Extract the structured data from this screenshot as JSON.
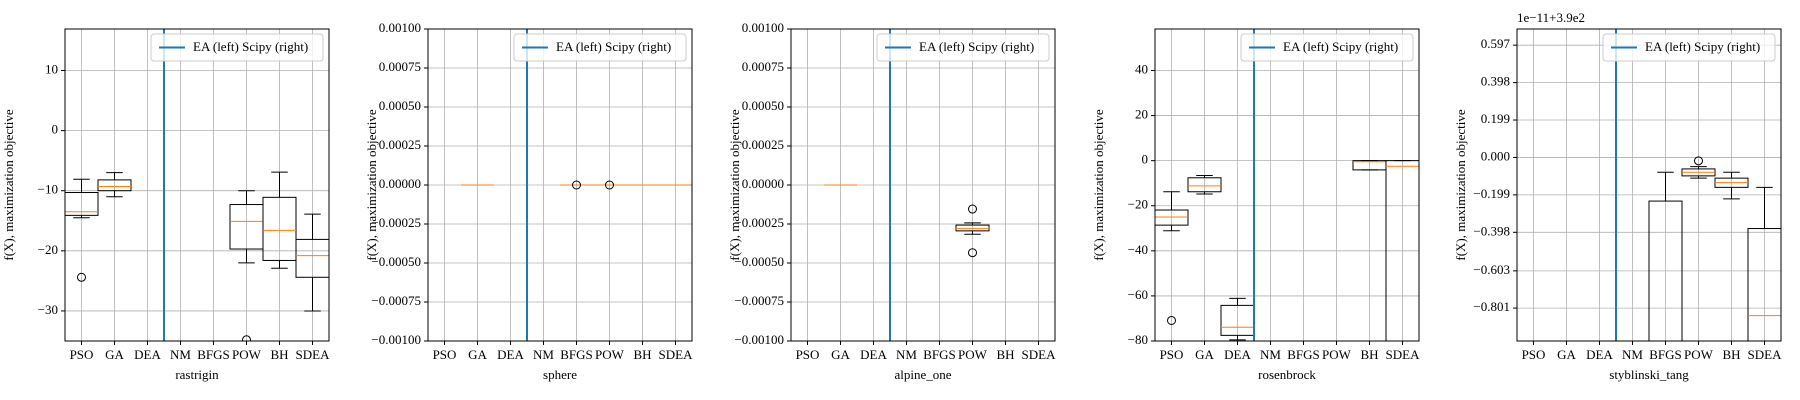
{
  "chart_data": [
    {
      "type": "box",
      "xlabel": "rastrigin",
      "ylabel": "f(X), maximization objective",
      "categories": [
        "PSO",
        "GA",
        "DEA",
        "NM",
        "BFGS",
        "POW",
        "BH",
        "SDEA"
      ],
      "positions": [
        1,
        2,
        3,
        4,
        5,
        6,
        7,
        8
      ],
      "xlim": [
        0.5,
        8.5
      ],
      "ylim": [
        -35,
        16.9
      ],
      "yticks": [
        {
          "value": -30,
          "label": "−30"
        },
        {
          "value": -20,
          "label": "−20"
        },
        {
          "value": -10,
          "label": "−10"
        },
        0,
        10
      ],
      "whisker_low": [
        -14.5,
        -11,
        null,
        null,
        null,
        -22,
        -22.9,
        -30
      ],
      "q1": [
        -14.1,
        -10,
        null,
        null,
        null,
        -19.7,
        -21.6,
        -24.4
      ],
      "median": [
        -13.5,
        -9.3,
        null,
        null,
        null,
        -15.1,
        -16.6,
        -20.8
      ],
      "q3": [
        -10.3,
        -8.2,
        null,
        null,
        null,
        -12.3,
        -11.1,
        -18.1
      ],
      "whisker_high": [
        -8.1,
        -7,
        null,
        null,
        null,
        -10,
        -6.9,
        -13.9
      ],
      "fliers": [
        [
          -24.4
        ],
        [],
        [],
        [],
        [],
        [
          -34.8
        ],
        [],
        []
      ],
      "vline": {
        "x": 3.5,
        "color": "#1f77b4",
        "label": "EA (left) Scipy (right)"
      },
      "legend": "upper right",
      "grid": true,
      "box_color": "#000000",
      "median_color": "#ff7f0e"
    },
    {
      "type": "box",
      "xlabel": "sphere",
      "ylabel": "f(X), maximization objective",
      "categories": [
        "PSO",
        "GA",
        "DEA",
        "NM",
        "BFGS",
        "POW",
        "BH",
        "SDEA"
      ],
      "positions": [
        1,
        2,
        3,
        4,
        5,
        6,
        7,
        8
      ],
      "xlim": [
        0.5,
        8.5
      ],
      "ylim": [
        -0.001,
        0.001
      ],
      "yticks": [
        {
          "value": -0.001,
          "label": "−0.00100"
        },
        {
          "value": -0.00075,
          "label": "−0.00075"
        },
        {
          "value": -0.0005,
          "label": "−0.00050"
        },
        {
          "value": -0.00025,
          "label": "−0.00025"
        },
        {
          "value": 0,
          "label": "0.00000"
        },
        {
          "value": 0.00025,
          "label": "0.00025"
        },
        {
          "value": 0.0005,
          "label": "0.00050"
        },
        {
          "value": 0.00075,
          "label": "0.00075"
        },
        {
          "value": 0.001,
          "label": "0.00100"
        }
      ],
      "whisker_low": [
        null,
        0,
        null,
        null,
        0,
        0,
        0,
        0
      ],
      "q1": [
        null,
        0,
        null,
        null,
        0,
        0,
        0,
        0
      ],
      "median": [
        null,
        0,
        null,
        null,
        0,
        0,
        0,
        0
      ],
      "q3": [
        null,
        0,
        null,
        null,
        0,
        0,
        0,
        0
      ],
      "whisker_high": [
        null,
        0,
        null,
        null,
        0,
        0,
        0,
        0
      ],
      "fliers": [
        [],
        [],
        [],
        [],
        [
          0
        ],
        [
          0
        ],
        [],
        []
      ],
      "vline": {
        "x": 3.5,
        "color": "#1f77b4",
        "label": "EA (left) Scipy (right)"
      },
      "legend": "upper right",
      "grid": true,
      "box_color": "#000000",
      "median_color": "#ff7f0e"
    },
    {
      "type": "box",
      "xlabel": "alpine_one",
      "ylabel": "f(X), maximization objective",
      "categories": [
        "PSO",
        "GA",
        "DEA",
        "NM",
        "BFGS",
        "POW",
        "BH",
        "SDEA"
      ],
      "positions": [
        1,
        2,
        3,
        4,
        5,
        6,
        7,
        8
      ],
      "xlim": [
        0.5,
        8.5
      ],
      "ylim": [
        -0.001,
        0.001
      ],
      "yticks": [
        {
          "value": -0.001,
          "label": "−0.00100"
        },
        {
          "value": -0.00075,
          "label": "−0.00075"
        },
        {
          "value": -0.0005,
          "label": "−0.00050"
        },
        {
          "value": -0.00025,
          "label": "−0.00025"
        },
        {
          "value": 0,
          "label": "0.00000"
        },
        {
          "value": 0.00025,
          "label": "0.00025"
        },
        {
          "value": 0.0005,
          "label": "0.00050"
        },
        {
          "value": 0.00075,
          "label": "0.00075"
        },
        {
          "value": 0.001,
          "label": "0.00100"
        }
      ],
      "whisker_low": [
        null,
        0,
        null,
        null,
        null,
        -0.000316,
        null,
        null
      ],
      "q1": [
        null,
        0,
        null,
        null,
        null,
        -0.000294,
        null,
        null
      ],
      "median": [
        null,
        0,
        null,
        null,
        null,
        -0.00028,
        null,
        null
      ],
      "q3": [
        null,
        0,
        null,
        null,
        null,
        -0.000257,
        null,
        null
      ],
      "whisker_high": [
        null,
        0,
        null,
        null,
        null,
        -0.000243,
        null,
        null
      ],
      "fliers": [
        [],
        [],
        [],
        [],
        [],
        [
          -0.000154,
          -0.000434
        ],
        [],
        []
      ],
      "vline": {
        "x": 3.5,
        "color": "#1f77b4",
        "label": "EA (left) Scipy (right)"
      },
      "legend": "upper right",
      "grid": true,
      "box_color": "#000000",
      "median_color": "#ff7f0e"
    },
    {
      "type": "box",
      "xlabel": "rosenbrock",
      "ylabel": "f(X), maximization objective",
      "categories": [
        "PSO",
        "GA",
        "DEA",
        "NM",
        "BFGS",
        "POW",
        "BH",
        "SDEA"
      ],
      "positions": [
        1,
        2,
        3,
        4,
        5,
        6,
        7,
        8
      ],
      "xlim": [
        0.5,
        8.5
      ],
      "ylim": [
        -80,
        58.4
      ],
      "yticks": [
        {
          "value": -80,
          "label": "−80"
        },
        {
          "value": -60,
          "label": "−60"
        },
        {
          "value": -40,
          "label": "−40"
        },
        {
          "value": -20,
          "label": "−20"
        },
        0,
        20,
        40
      ],
      "whisker_low": [
        -31.1,
        -14.8,
        -79.5,
        null,
        null,
        null,
        -4.1,
        -95
      ],
      "q1": [
        -28.6,
        -13.8,
        -77.5,
        null,
        null,
        null,
        -4.1,
        -90
      ],
      "median": [
        -25,
        -11.2,
        -73.9,
        null,
        null,
        null,
        -0.5,
        -2.5
      ],
      "q3": [
        -21.9,
        -7.6,
        -64.2,
        null,
        null,
        null,
        0,
        0
      ],
      "whisker_high": [
        -13.8,
        -6.6,
        -61.1,
        null,
        null,
        null,
        0,
        0
      ],
      "fliers": [
        [
          -70.9
        ],
        [],
        [],
        [],
        [],
        [],
        [],
        []
      ],
      "vline": {
        "x": 3.5,
        "color": "#1f77b4",
        "label": "EA (left) Scipy (right)"
      },
      "legend": "upper right",
      "grid": true,
      "box_color": "#000000",
      "median_color": "#ff7f0e"
    },
    {
      "type": "box",
      "xlabel": "styblinski_tang",
      "ylabel": "f(X), maximization objective",
      "offset_text": "1e−11+3.9e2",
      "categories": [
        "PSO",
        "GA",
        "DEA",
        "NM",
        "BFGS",
        "POW",
        "BH",
        "SDEA"
      ],
      "positions": [
        1,
        2,
        3,
        4,
        5,
        6,
        7,
        8
      ],
      "xlim": [
        0.5,
        8.5
      ],
      "ylim": [
        -0.976,
        0.683
      ],
      "yticks": [
        {
          "value": -0.801,
          "label": "−0.801"
        },
        {
          "value": -0.603,
          "label": "−0.603"
        },
        {
          "value": -0.398,
          "label": "−0.398"
        },
        {
          "value": -0.199,
          "label": "−0.199"
        },
        {
          "value": 0,
          "label": "0.000"
        },
        0.199,
        0.398,
        0.597
      ],
      "whisker_low": [
        null,
        null,
        null,
        null,
        -1.3,
        -0.11,
        -0.22,
        -1.2
      ],
      "q1": [
        null,
        null,
        null,
        null,
        -1.2,
        -0.098,
        -0.159,
        -1.1
      ],
      "median": [
        null,
        null,
        null,
        null,
        -1.2,
        -0.079,
        -0.134,
        -0.841
      ],
      "q3": [
        null,
        null,
        null,
        null,
        -0.232,
        -0.061,
        -0.11,
        -0.378
      ],
      "whisker_high": [
        null,
        null,
        null,
        null,
        -0.079,
        -0.049,
        -0.079,
        -0.159
      ],
      "fliers": [
        [],
        [],
        [],
        [],
        [],
        [
          -0.018
        ],
        [],
        []
      ],
      "vline": {
        "x": 3.5,
        "color": "#1f77b4",
        "label": "EA (left) Scipy (right)"
      },
      "legend": "upper right",
      "grid": true,
      "box_color": "#000000",
      "median_color": "#ff7f0e"
    }
  ]
}
